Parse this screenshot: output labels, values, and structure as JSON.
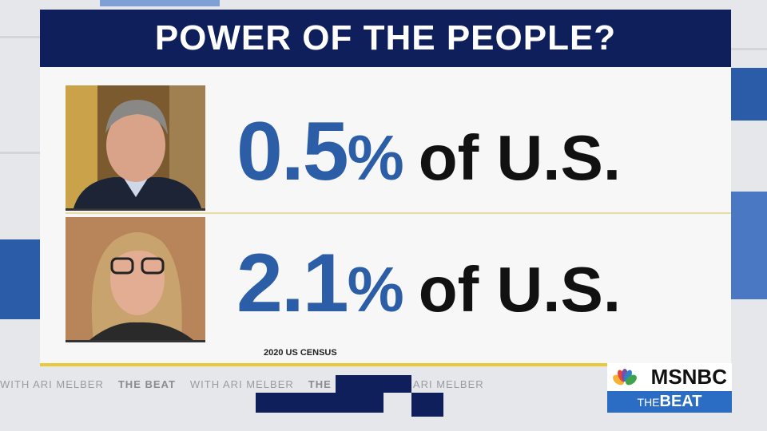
{
  "header": {
    "title": "POWER OF THE PEOPLE?"
  },
  "rows": [
    {
      "number": "0.5",
      "unit": "%",
      "suffix": "of U.S."
    },
    {
      "number": "2.1",
      "unit": "%",
      "suffix": "of U.S."
    }
  ],
  "source": "2020 US CENSUS",
  "ticker": [
    "WITH ARI MELBER",
    "THE BEAT",
    "WITH ARI MELBER",
    "THE BEAT",
    "WITH ARI MELBER"
  ],
  "logo": {
    "network": "MSNBC",
    "show_prefix": "THE",
    "show": "BEAT"
  }
}
